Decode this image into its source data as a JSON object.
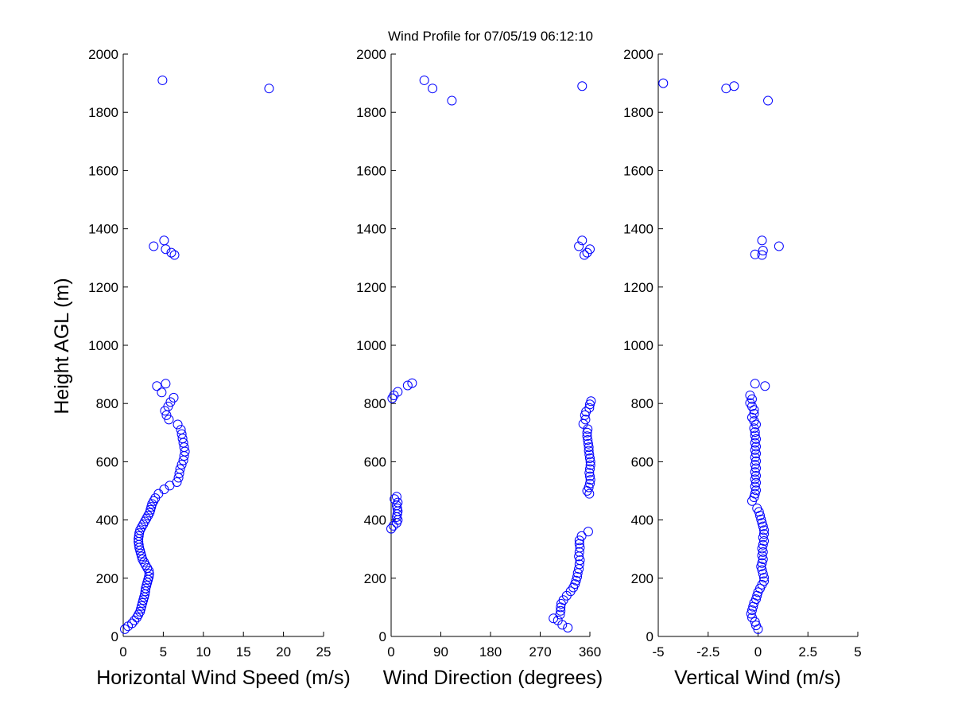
{
  "chart_data": [
    {
      "type": "scatter",
      "title": "Wind Profile for  07/05/19 06:12:10",
      "xlabel": "Horizontal Wind Speed (m/s)",
      "ylabel": "Height AGL (m)",
      "xlim": [
        0,
        25
      ],
      "ylim": [
        0,
        2000
      ],
      "xticks": [
        "0",
        "5",
        "10",
        "15",
        "20",
        "25"
      ],
      "yticks": [
        "0",
        "200",
        "400",
        "600",
        "800",
        "1000",
        "1200",
        "1400",
        "1600",
        "1800",
        "2000"
      ],
      "grid": false,
      "marker": "circle",
      "color": "#0000ff",
      "points": [
        [
          0.2,
          25
        ],
        [
          0.6,
          35
        ],
        [
          1.1,
          45
        ],
        [
          1.4,
          55
        ],
        [
          1.7,
          65
        ],
        [
          1.9,
          75
        ],
        [
          2.1,
          85
        ],
        [
          2.2,
          95
        ],
        [
          2.3,
          105
        ],
        [
          2.4,
          115
        ],
        [
          2.5,
          125
        ],
        [
          2.6,
          135
        ],
        [
          2.7,
          145
        ],
        [
          2.75,
          155
        ],
        [
          2.8,
          165
        ],
        [
          2.9,
          175
        ],
        [
          3.0,
          185
        ],
        [
          3.1,
          195
        ],
        [
          3.2,
          205
        ],
        [
          3.25,
          215
        ],
        [
          3.2,
          225
        ],
        [
          3.0,
          235
        ],
        [
          2.8,
          245
        ],
        [
          2.6,
          255
        ],
        [
          2.4,
          265
        ],
        [
          2.3,
          275
        ],
        [
          2.2,
          285
        ],
        [
          2.1,
          295
        ],
        [
          2.0,
          305
        ],
        [
          1.95,
          315
        ],
        [
          1.9,
          325
        ],
        [
          1.9,
          335
        ],
        [
          1.95,
          345
        ],
        [
          2.0,
          355
        ],
        [
          2.1,
          365
        ],
        [
          2.3,
          375
        ],
        [
          2.5,
          385
        ],
        [
          2.7,
          395
        ],
        [
          2.9,
          405
        ],
        [
          3.1,
          415
        ],
        [
          3.3,
          425
        ],
        [
          3.4,
          435
        ],
        [
          3.5,
          445
        ],
        [
          3.6,
          455
        ],
        [
          3.8,
          465
        ],
        [
          4.0,
          475
        ],
        [
          4.4,
          490
        ],
        [
          5.1,
          505
        ],
        [
          5.8,
          518
        ],
        [
          6.7,
          530
        ],
        [
          6.9,
          545
        ],
        [
          7.0,
          560
        ],
        [
          7.1,
          575
        ],
        [
          7.3,
          590
        ],
        [
          7.5,
          605
        ],
        [
          7.6,
          620
        ],
        [
          7.7,
          635
        ],
        [
          7.6,
          650
        ],
        [
          7.5,
          665
        ],
        [
          7.4,
          680
        ],
        [
          7.3,
          695
        ],
        [
          7.2,
          710
        ],
        [
          6.8,
          728
        ],
        [
          5.7,
          745
        ],
        [
          5.4,
          760
        ],
        [
          5.2,
          775
        ],
        [
          5.6,
          790
        ],
        [
          5.9,
          805
        ],
        [
          6.3,
          820
        ],
        [
          4.8,
          838
        ],
        [
          4.2,
          860
        ],
        [
          5.3,
          868
        ],
        [
          3.8,
          1340
        ],
        [
          5.1,
          1360
        ],
        [
          5.3,
          1330
        ],
        [
          6.0,
          1318
        ],
        [
          6.4,
          1310
        ],
        [
          4.9,
          1910
        ],
        [
          18.2,
          1882
        ]
      ]
    },
    {
      "type": "scatter",
      "xlabel": "Wind Direction (degrees)",
      "xlim": [
        0,
        360
      ],
      "ylim": [
        0,
        2000
      ],
      "xticks": [
        "0",
        "90",
        "180",
        "270",
        "360"
      ],
      "yticks": [
        "0",
        "200",
        "400",
        "600",
        "800",
        "1000",
        "1200",
        "1400",
        "1600",
        "1800",
        "2000"
      ],
      "grid": false,
      "marker": "circle",
      "color": "#0000ff",
      "points": [
        [
          320,
          30
        ],
        [
          310,
          40
        ],
        [
          302,
          55
        ],
        [
          294,
          62
        ],
        [
          306,
          75
        ],
        [
          307,
          88
        ],
        [
          307,
          100
        ],
        [
          308,
          112
        ],
        [
          312,
          125
        ],
        [
          318,
          140
        ],
        [
          325,
          155
        ],
        [
          330,
          168
        ],
        [
          333,
          180
        ],
        [
          335,
          192
        ],
        [
          337,
          205
        ],
        [
          338,
          218
        ],
        [
          340,
          232
        ],
        [
          341,
          248
        ],
        [
          342,
          262
        ],
        [
          340,
          275
        ],
        [
          341,
          290
        ],
        [
          342,
          305
        ],
        [
          341,
          318
        ],
        [
          341,
          330
        ],
        [
          345,
          345
        ],
        [
          357,
          360
        ],
        [
          0,
          370
        ],
        [
          4,
          380
        ],
        [
          10,
          390
        ],
        [
          12,
          400
        ],
        [
          10,
          410
        ],
        [
          11,
          420
        ],
        [
          12,
          430
        ],
        [
          11,
          440
        ],
        [
          10,
          450
        ],
        [
          12,
          460
        ],
        [
          6,
          472
        ],
        [
          10,
          480
        ],
        [
          359,
          490
        ],
        [
          355,
          500
        ],
        [
          358,
          512
        ],
        [
          360,
          525
        ],
        [
          361,
          538
        ],
        [
          360,
          550
        ],
        [
          359,
          562
        ],
        [
          360,
          575
        ],
        [
          361,
          588
        ],
        [
          361,
          600
        ],
        [
          360,
          612
        ],
        [
          359,
          625
        ],
        [
          358,
          638
        ],
        [
          358,
          650
        ],
        [
          357,
          662
        ],
        [
          356,
          675
        ],
        [
          355,
          688
        ],
        [
          355,
          700
        ],
        [
          356,
          712
        ],
        [
          348,
          730
        ],
        [
          352,
          745
        ],
        [
          351,
          760
        ],
        [
          353,
          772
        ],
        [
          359,
          785
        ],
        [
          360,
          797
        ],
        [
          362,
          808
        ],
        [
          2,
          818
        ],
        [
          5,
          828
        ],
        [
          12,
          840
        ],
        [
          30,
          862
        ],
        [
          38,
          870
        ],
        [
          350,
          1310
        ],
        [
          355,
          1318
        ],
        [
          360,
          1330
        ],
        [
          340,
          1340
        ],
        [
          346,
          1360
        ],
        [
          60,
          1910
        ],
        [
          75,
          1882
        ],
        [
          110,
          1840
        ],
        [
          346,
          1890
        ]
      ]
    },
    {
      "type": "scatter",
      "xlabel": "Vertical Wind (m/s)",
      "xlim": [
        -5,
        5
      ],
      "ylim": [
        0,
        2000
      ],
      "xticks": [
        "-5",
        "-2.5",
        "0",
        "2.5",
        "5"
      ],
      "yticks": [
        "0",
        "200",
        "400",
        "600",
        "800",
        "1000",
        "1200",
        "1400",
        "1600",
        "1800",
        "2000"
      ],
      "grid": false,
      "marker": "circle",
      "color": "#0000ff",
      "points": [
        [
          0.0,
          25
        ],
        [
          -0.1,
          38
        ],
        [
          -0.15,
          50
        ],
        [
          -0.3,
          65
        ],
        [
          -0.35,
          78
        ],
        [
          -0.3,
          90
        ],
        [
          -0.25,
          102
        ],
        [
          -0.2,
          115
        ],
        [
          -0.1,
          128
        ],
        [
          -0.05,
          140
        ],
        [
          0.0,
          152
        ],
        [
          0.1,
          165
        ],
        [
          0.2,
          178
        ],
        [
          0.3,
          190
        ],
        [
          0.3,
          202
        ],
        [
          0.25,
          215
        ],
        [
          0.2,
          228
        ],
        [
          0.15,
          240
        ],
        [
          0.2,
          252
        ],
        [
          0.25,
          265
        ],
        [
          0.2,
          278
        ],
        [
          0.25,
          290
        ],
        [
          0.2,
          302
        ],
        [
          0.25,
          315
        ],
        [
          0.3,
          328
        ],
        [
          0.25,
          340
        ],
        [
          0.3,
          352
        ],
        [
          0.3,
          365
        ],
        [
          0.25,
          378
        ],
        [
          0.2,
          390
        ],
        [
          0.15,
          402
        ],
        [
          0.1,
          415
        ],
        [
          0.05,
          428
        ],
        [
          -0.05,
          440
        ],
        [
          -0.3,
          465
        ],
        [
          -0.2,
          478
        ],
        [
          -0.15,
          490
        ],
        [
          -0.1,
          502
        ],
        [
          -0.15,
          515
        ],
        [
          -0.1,
          528
        ],
        [
          -0.15,
          540
        ],
        [
          -0.1,
          552
        ],
        [
          -0.15,
          565
        ],
        [
          -0.1,
          578
        ],
        [
          -0.15,
          590
        ],
        [
          -0.1,
          602
        ],
        [
          -0.15,
          615
        ],
        [
          -0.1,
          628
        ],
        [
          -0.15,
          640
        ],
        [
          -0.1,
          652
        ],
        [
          -0.15,
          665
        ],
        [
          -0.1,
          678
        ],
        [
          -0.15,
          690
        ],
        [
          -0.15,
          702
        ],
        [
          -0.2,
          715
        ],
        [
          -0.1,
          728
        ],
        [
          -0.2,
          740
        ],
        [
          -0.3,
          752
        ],
        [
          -0.2,
          765
        ],
        [
          -0.2,
          778
        ],
        [
          -0.3,
          790
        ],
        [
          -0.4,
          802
        ],
        [
          -0.3,
          815
        ],
        [
          -0.4,
          828
        ],
        [
          -0.15,
          868
        ],
        [
          0.35,
          860
        ],
        [
          0.2,
          1310
        ],
        [
          -0.15,
          1312
        ],
        [
          0.25,
          1325
        ],
        [
          1.05,
          1340
        ],
        [
          0.2,
          1360
        ],
        [
          -4.75,
          1900
        ],
        [
          -1.6,
          1882
        ],
        [
          -1.2,
          1890
        ],
        [
          0.5,
          1840
        ]
      ]
    }
  ]
}
